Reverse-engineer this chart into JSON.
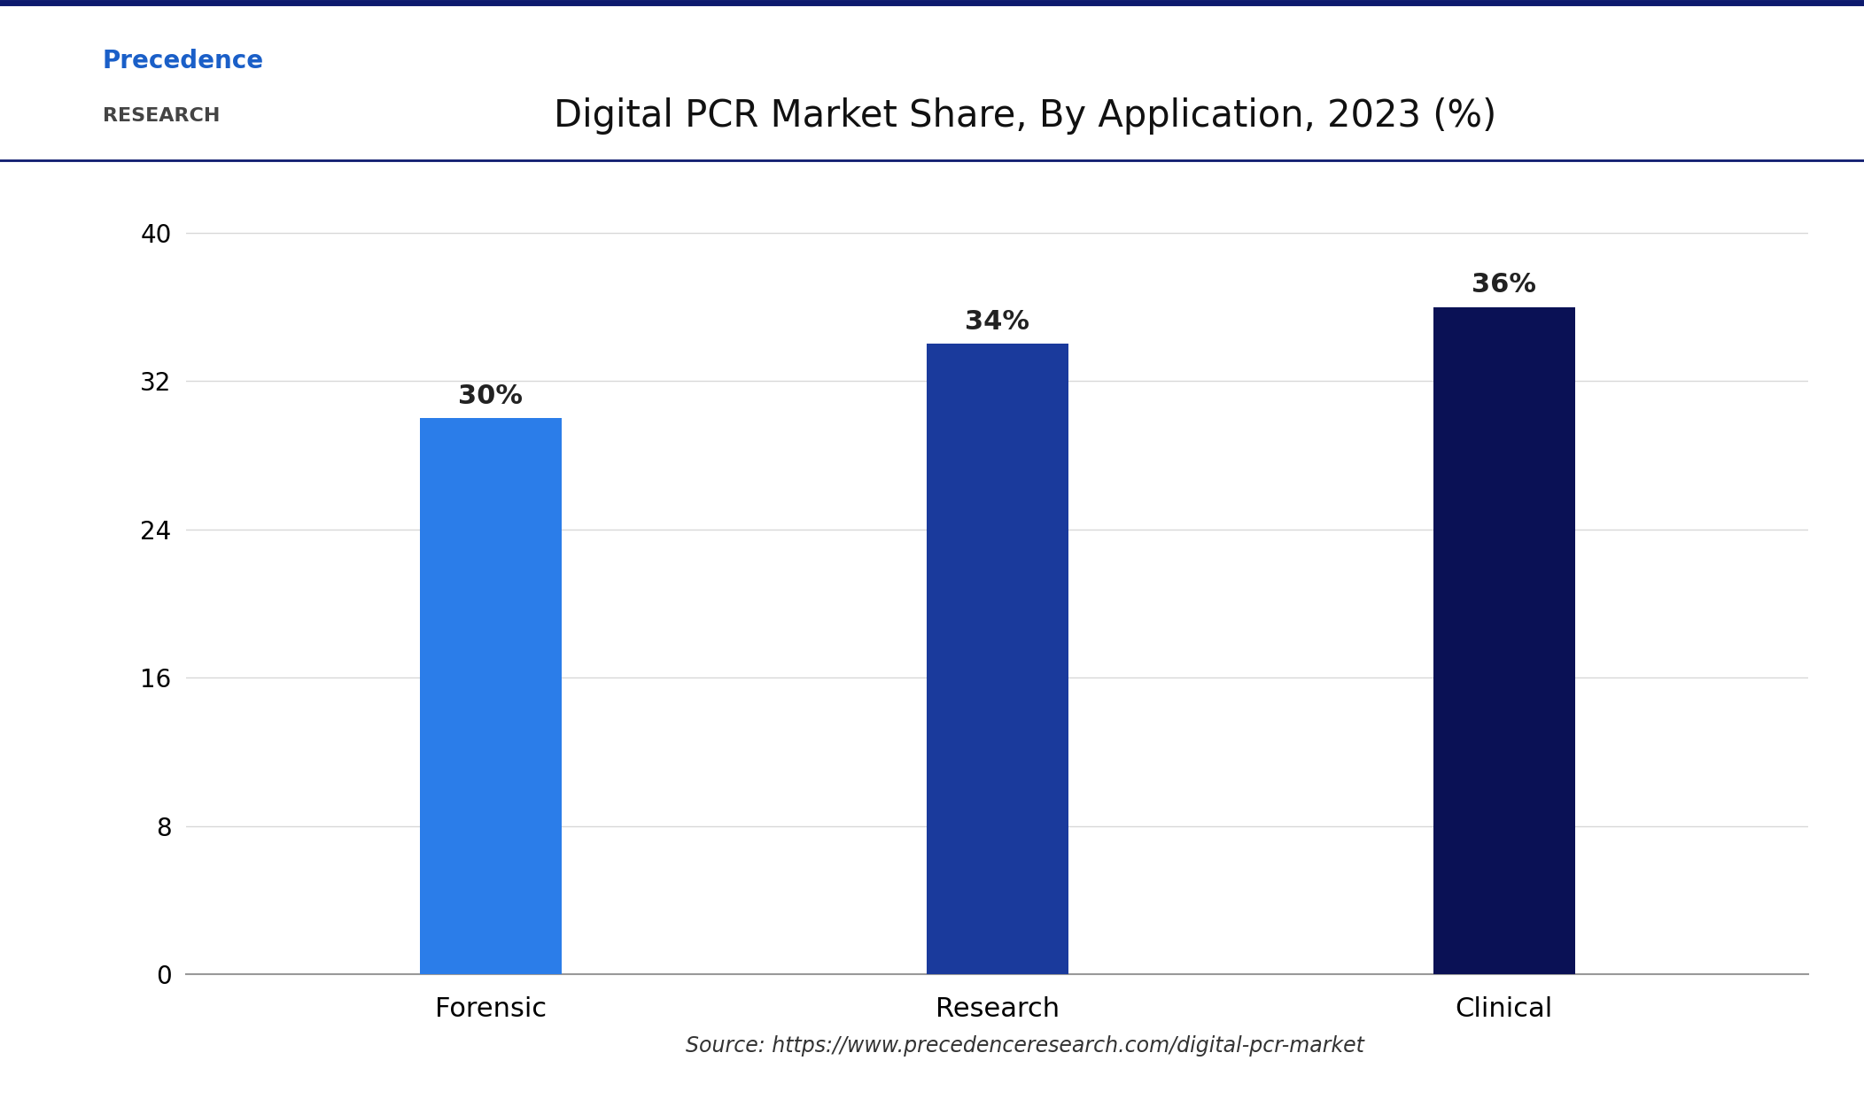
{
  "title": "Digital PCR Market Share, By Application, 2023 (%)",
  "categories": [
    "Forensic",
    "Research",
    "Clinical"
  ],
  "values": [
    30,
    34,
    36
  ],
  "bar_colors": [
    "#2b7de9",
    "#1a3a9c",
    "#0a1155"
  ],
  "bar_labels": [
    "30%",
    "34%",
    "36%"
  ],
  "yticks": [
    0,
    8,
    16,
    24,
    32,
    40
  ],
  "ylim": [
    0,
    43
  ],
  "background_color": "#ffffff",
  "plot_bg_color": "#ffffff",
  "grid_color": "#d8d8d8",
  "axis_line_color": "#999999",
  "title_fontsize": 30,
  "tick_fontsize": 20,
  "label_fontsize": 22,
  "annotation_fontsize": 22,
  "source_text": "Source: https://www.precedenceresearch.com/digital-pcr-market",
  "source_fontsize": 17,
  "bar_width": 0.28,
  "top_border_color": "#1a3a9c",
  "separator_color": "#1a3a9c",
  "logo_text_line1": "Precedence",
  "logo_text_line2": "RESEARCH"
}
